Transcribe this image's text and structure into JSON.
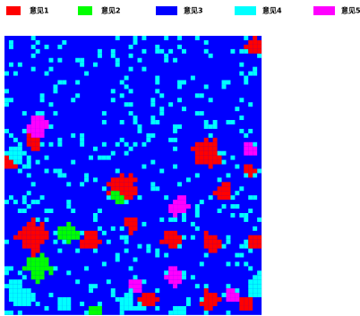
{
  "legend": [
    {
      "label": "意见1",
      "color": "#ff0000"
    },
    {
      "label": "意见2",
      "color": "#00ff00"
    },
    {
      "label": "意见3",
      "color": "#0000ff"
    },
    {
      "label": "意见4",
      "color": "#00ffff"
    },
    {
      "label": "意见5",
      "color": "#ff00ff"
    }
  ]
}
